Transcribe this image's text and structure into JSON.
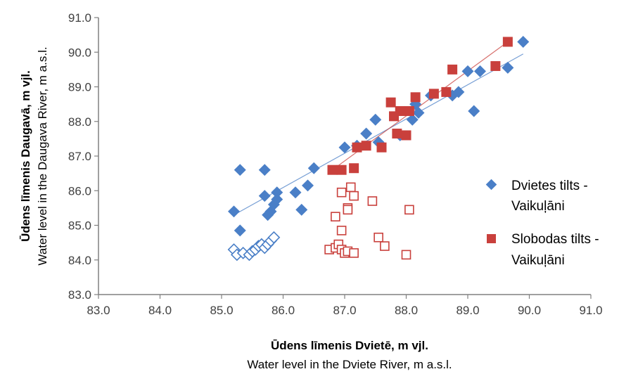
{
  "chart_data": {
    "type": "scatter",
    "xlabel_primary": "Ūdens līmenis Dvietē, m vjl.",
    "xlabel_secondary": "Water level in the Dviete River, m a.s.l.",
    "ylabel_primary": "Ūdens līmenis Daugavā, m vjl.",
    "ylabel_secondary": "Water level in the Daugava River, m a.s.l.",
    "xlim": [
      83.0,
      91.0
    ],
    "ylim": [
      83.0,
      91.0
    ],
    "x_ticks": [
      "83.0",
      "84.0",
      "85.0",
      "86.0",
      "87.0",
      "88.0",
      "89.0",
      "90.0",
      "91.0"
    ],
    "y_ticks": [
      "83.0",
      "84.0",
      "85.0",
      "86.0",
      "87.0",
      "88.0",
      "89.0",
      "90.0",
      "91.0"
    ],
    "grid": false,
    "legend_position": "right",
    "series": [
      {
        "name": "Dvietes tilts -",
        "name_line2": "Vaikuļāni",
        "marker": "diamond",
        "color": "#4a7fc7",
        "trendline": [
          [
            85.2,
            85.3
          ],
          [
            89.9,
            89.95
          ]
        ],
        "points": [
          [
            85.2,
            85.4
          ],
          [
            85.3,
            86.6
          ],
          [
            85.3,
            84.85
          ],
          [
            85.7,
            86.6
          ],
          [
            85.7,
            85.85
          ],
          [
            85.75,
            85.3
          ],
          [
            85.8,
            85.4
          ],
          [
            85.85,
            85.6
          ],
          [
            85.9,
            85.95
          ],
          [
            85.9,
            85.75
          ],
          [
            86.2,
            85.95
          ],
          [
            86.3,
            85.45
          ],
          [
            86.4,
            86.15
          ],
          [
            86.5,
            86.65
          ],
          [
            87.0,
            87.25
          ],
          [
            87.2,
            87.3
          ],
          [
            87.35,
            87.65
          ],
          [
            87.5,
            88.05
          ],
          [
            87.55,
            87.4
          ],
          [
            87.9,
            87.6
          ],
          [
            88.1,
            88.05
          ],
          [
            88.15,
            88.5
          ],
          [
            88.2,
            88.25
          ],
          [
            88.4,
            88.75
          ],
          [
            88.75,
            88.75
          ],
          [
            88.85,
            88.85
          ],
          [
            89.0,
            89.45
          ],
          [
            89.1,
            88.3
          ],
          [
            89.2,
            89.45
          ],
          [
            89.65,
            89.55
          ],
          [
            89.9,
            90.3
          ]
        ]
      },
      {
        "name": "Slobodas tilts -",
        "name_line2": "Vaikuļāni",
        "marker": "square",
        "color": "#c9403c",
        "trendline": [
          [
            86.8,
            86.6
          ],
          [
            89.65,
            90.3
          ]
        ],
        "points": [
          [
            86.8,
            86.6
          ],
          [
            86.95,
            86.6
          ],
          [
            87.15,
            86.65
          ],
          [
            87.2,
            87.25
          ],
          [
            87.35,
            87.3
          ],
          [
            87.6,
            87.25
          ],
          [
            87.75,
            88.55
          ],
          [
            87.8,
            88.15
          ],
          [
            87.85,
            87.65
          ],
          [
            87.9,
            88.3
          ],
          [
            88.0,
            87.6
          ],
          [
            88.05,
            88.3
          ],
          [
            88.15,
            88.7
          ],
          [
            88.45,
            88.8
          ],
          [
            88.65,
            88.85
          ],
          [
            88.75,
            89.5
          ],
          [
            89.45,
            89.6
          ],
          [
            89.65,
            90.3
          ]
        ]
      },
      {
        "marker": "diamond-open",
        "color": "#4a7fc7",
        "points": [
          [
            85.2,
            84.3
          ],
          [
            85.25,
            84.15
          ],
          [
            85.35,
            84.2
          ],
          [
            85.45,
            84.15
          ],
          [
            85.5,
            84.25
          ],
          [
            85.55,
            84.3
          ],
          [
            85.6,
            84.4
          ],
          [
            85.65,
            84.45
          ],
          [
            85.7,
            84.35
          ],
          [
            85.75,
            84.45
          ],
          [
            85.8,
            84.55
          ],
          [
            85.85,
            84.65
          ]
        ]
      },
      {
        "marker": "square-open",
        "color": "#c9403c",
        "points": [
          [
            86.75,
            84.3
          ],
          [
            86.85,
            85.25
          ],
          [
            86.85,
            84.35
          ],
          [
            86.9,
            84.45
          ],
          [
            86.95,
            84.3
          ],
          [
            86.95,
            84.85
          ],
          [
            86.95,
            85.95
          ],
          [
            87.0,
            84.2
          ],
          [
            87.05,
            84.25
          ],
          [
            87.05,
            85.5
          ],
          [
            87.05,
            85.45
          ],
          [
            87.1,
            86.1
          ],
          [
            87.15,
            85.85
          ],
          [
            87.15,
            84.2
          ],
          [
            87.45,
            85.7
          ],
          [
            87.55,
            84.65
          ],
          [
            87.65,
            84.4
          ],
          [
            88.0,
            84.15
          ],
          [
            88.05,
            85.45
          ]
        ]
      }
    ]
  }
}
